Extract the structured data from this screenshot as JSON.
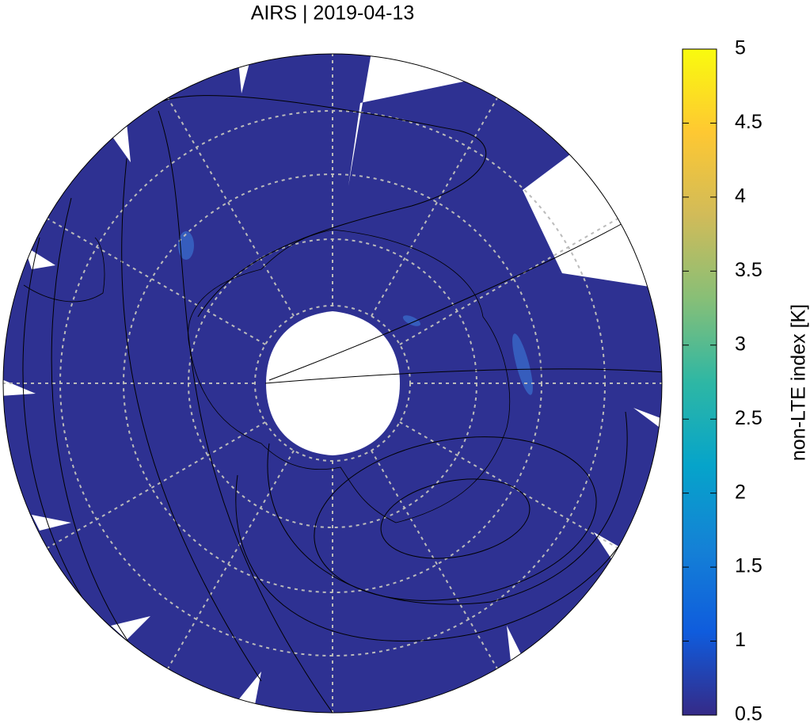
{
  "chart_data": {
    "type": "map",
    "title": "AIRS | 2019-04-13",
    "map_color": "#2e3192",
    "colorbar": {
      "label": "non-LTE index [K]",
      "zlim": [
        0.5,
        5
      ],
      "ticks": [
        0.5,
        1,
        1.5,
        2,
        2.5,
        3,
        3.5,
        4,
        4.5,
        5
      ],
      "colormap": [
        "#352a87",
        "#0f5cdd",
        "#1481d6",
        "#06a4ca",
        "#2eb7a4",
        "#87bf77",
        "#d1bb59",
        "#fec832",
        "#f9fb0e"
      ]
    }
  }
}
